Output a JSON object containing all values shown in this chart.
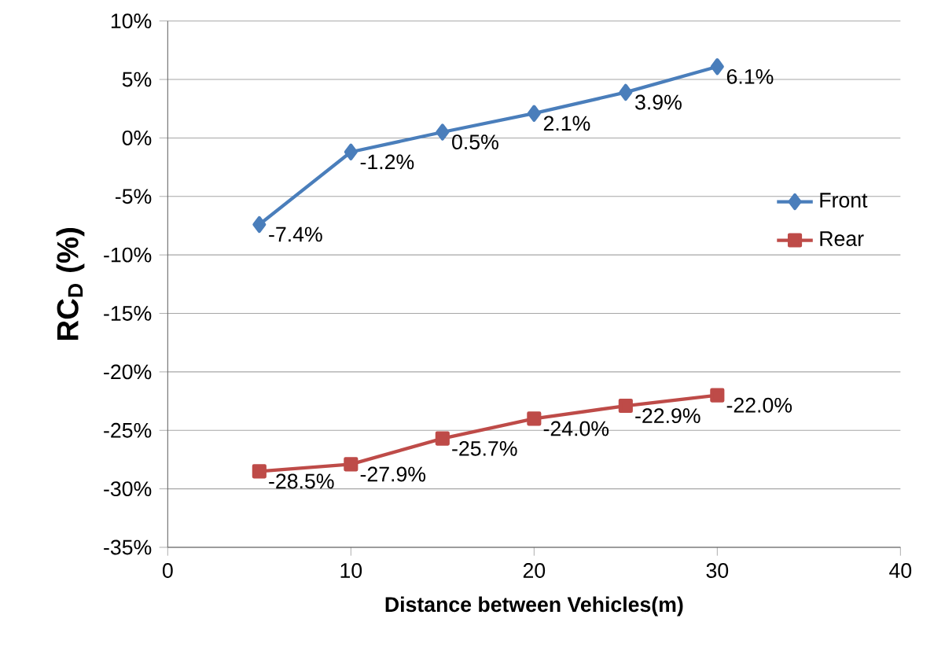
{
  "chart_data": {
    "type": "line",
    "xlabel": "Distance between Vehicles(m)",
    "ylabel": "RC$_{D}$ (%)",
    "x": [
      5,
      10,
      15,
      20,
      25,
      30
    ],
    "series": [
      {
        "name": "Front",
        "color": "#4a7ebb",
        "marker": "diamond",
        "values": [
          -7.4,
          -1.2,
          0.5,
          2.1,
          3.9,
          6.1
        ],
        "value_labels": [
          "-7.4%",
          "-1.2%",
          "0.5%",
          "2.1%",
          "3.9%",
          "6.1%"
        ]
      },
      {
        "name": "Rear",
        "color": "#be4b48",
        "marker": "square",
        "values": [
          -28.5,
          -27.9,
          -25.7,
          -24.0,
          -22.9,
          -22.0
        ],
        "value_labels": [
          "-28.5%",
          "-27.9%",
          "-25.7%",
          "-24.0%",
          "-22.9%",
          "-22.0%"
        ]
      }
    ],
    "xlim": [
      0,
      40
    ],
    "xticks": [
      0,
      10,
      20,
      30,
      40
    ],
    "ylim": [
      -35,
      10
    ],
    "yticks": [
      {
        "value": -35,
        "label": "-35%"
      },
      {
        "value": -30,
        "label": "-30%"
      },
      {
        "value": -25,
        "label": "-25%"
      },
      {
        "value": -20,
        "label": "-20%"
      },
      {
        "value": -15,
        "label": "-15%"
      },
      {
        "value": -10,
        "label": "-10%"
      },
      {
        "value": -5,
        "label": "-5%"
      },
      {
        "value": 0,
        "label": "0%"
      },
      {
        "value": 5,
        "label": "5%"
      },
      {
        "value": 10,
        "label": "10%"
      }
    ],
    "grid": "y",
    "legend": "right",
    "line_style": "solid"
  }
}
